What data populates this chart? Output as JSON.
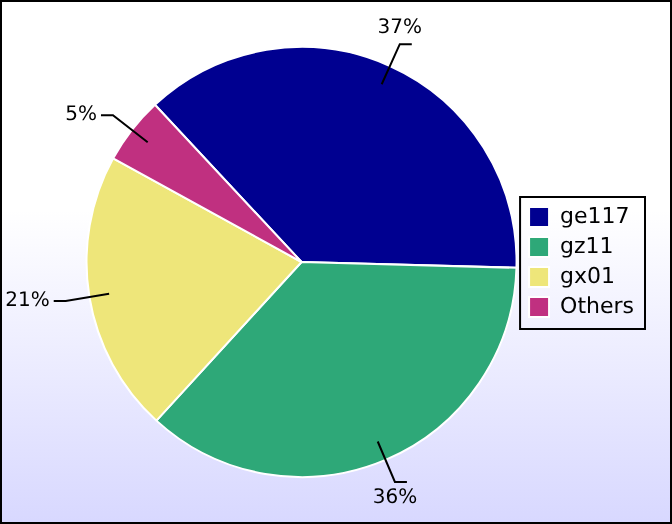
{
  "chart_data": {
    "type": "pie",
    "categories": [
      "ge117",
      "gz11",
      "gx01",
      "Others"
    ],
    "values": [
      37,
      36,
      21,
      5
    ],
    "colors": [
      "#000090",
      "#2ea878",
      "#eee67a",
      "#c03080"
    ],
    "value_labels": [
      "37%",
      "36%",
      "21%",
      "5%"
    ],
    "legend": "right"
  }
}
